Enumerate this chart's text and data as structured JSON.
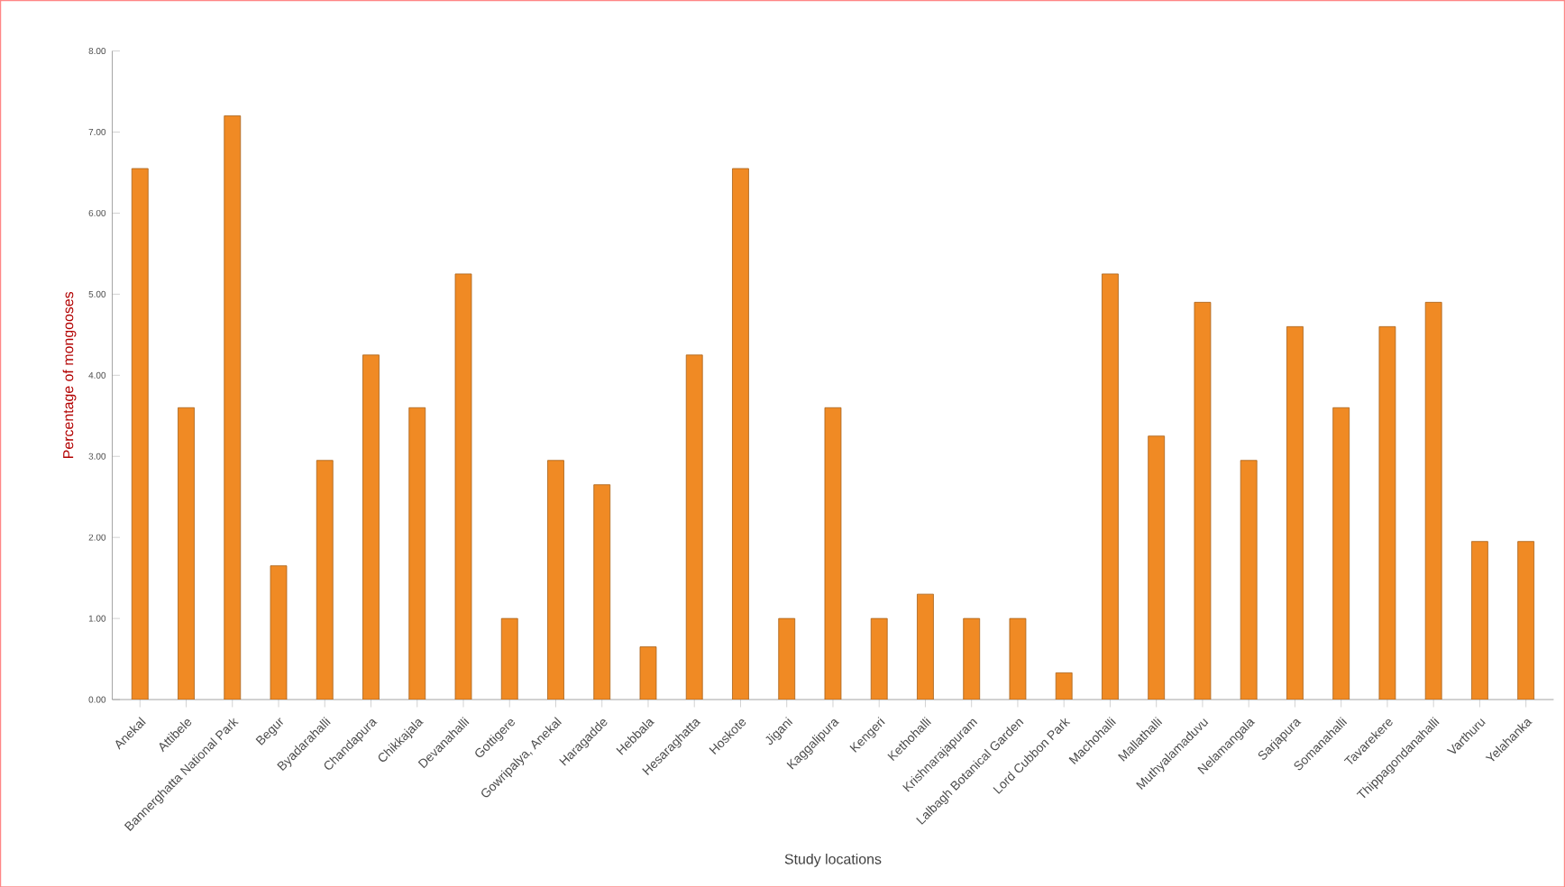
{
  "chart_data": {
    "type": "bar",
    "xlabel": "Study locations",
    "ylabel": "Percentage of mongooses",
    "categories": [
      "Anekal",
      "Attibele",
      "Bannerghatta National Park",
      "Begur",
      "Byadarahalli",
      "Chandapura",
      "Chikkajala",
      "Devanahalli",
      "Gottigere",
      "Gowripalya, Anekal",
      "Haragadde",
      "Hebbala",
      "Hesaraghatta",
      "Hoskote",
      "Jigani",
      "Kaggalipura",
      "Kengeri",
      "Kethohalli",
      "Krishnarajapuram",
      "Lalbagh Botanical Garden",
      "Lord Cubbon Park",
      "Machohalli",
      "Mallathalli",
      "Muthyalamaduvu",
      "Nelamangala",
      "Sarjapura",
      "Somanahalli",
      "Tavarekere",
      "Thippagondanahalli",
      "Varthuru",
      "Yelahanka"
    ],
    "values": [
      6.55,
      3.6,
      7.2,
      1.65,
      2.95,
      4.25,
      3.6,
      5.25,
      1.0,
      2.95,
      2.65,
      0.65,
      4.25,
      6.55,
      1.0,
      3.6,
      1.0,
      1.3,
      1.0,
      1.0,
      0.33,
      5.25,
      3.25,
      4.9,
      2.95,
      4.6,
      3.6,
      4.6,
      4.9,
      1.95,
      1.95
    ],
    "color": "#f08a24",
    "ylim": [
      0,
      8
    ],
    "yticks": [
      {
        "value": 0,
        "label": "0.00"
      },
      {
        "value": 1,
        "label": "1.00"
      },
      {
        "value": 2,
        "label": "2.00"
      },
      {
        "value": 3,
        "label": "3.00"
      },
      {
        "value": 4,
        "label": "4.00"
      },
      {
        "value": 5,
        "label": "5.00"
      },
      {
        "value": 6,
        "label": "6.00"
      },
      {
        "value": 7,
        "label": "7.00"
      },
      {
        "value": 8,
        "label": "8.00"
      }
    ]
  }
}
